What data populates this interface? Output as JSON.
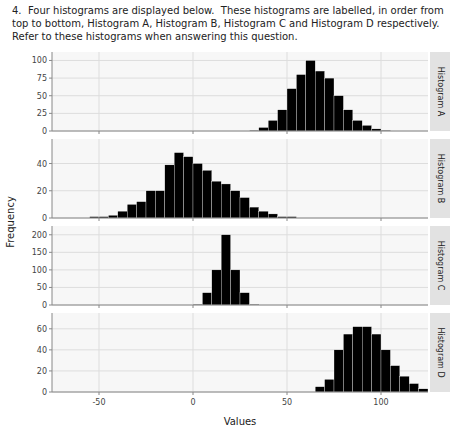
{
  "chart_data": {
    "type": "histogram",
    "title": "4.  Four histograms are displayed below.  These histograms are labelled, in order from top to bottom, Histogram A, Histogram B, Histogram C and Histogram D respectively.  Refer to these histograms when answering this question.",
    "x_label": "Values",
    "y_label": "Frequency",
    "color": "black",
    "grid": true,
    "xlim": [
      -75,
      125
    ],
    "xticks": [
      -50,
      0,
      50,
      100
    ],
    "bins": [
      -75,
      -70,
      -65,
      -60,
      -55,
      -50,
      -45,
      -40,
      -35,
      -30,
      -25,
      -20,
      -15,
      -10,
      -5,
      0,
      5,
      10,
      15,
      20,
      25,
      30,
      35,
      40,
      45,
      50,
      55,
      60,
      65,
      70,
      75,
      80,
      85,
      90,
      95,
      100,
      105,
      110,
      115,
      120,
      125
    ],
    "series": [
      {
        "name": "Histogram A",
        "ylim": [
          0,
          112
        ],
        "yticks": [
          0,
          25,
          50,
          75,
          100
        ],
        "values": [
          0,
          0,
          0,
          0,
          0,
          0,
          0,
          0,
          0,
          0,
          0,
          0,
          0,
          0,
          0,
          0,
          0,
          0,
          0,
          0,
          0,
          1,
          5,
          15,
          30,
          60,
          80,
          100,
          85,
          75,
          50,
          30,
          15,
          8,
          3,
          1,
          0,
          0,
          0,
          0
        ]
      },
      {
        "name": "Histogram B",
        "ylim": [
          0,
          58
        ],
        "yticks": [
          0,
          20,
          40
        ],
        "values": [
          0,
          0,
          0,
          0,
          1,
          1,
          2,
          5,
          10,
          12,
          20,
          20,
          39,
          48,
          45,
          40,
          35,
          27,
          25,
          20,
          15,
          8,
          5,
          3,
          1,
          1,
          0,
          0,
          0,
          0,
          0,
          0,
          0,
          0,
          0,
          0,
          0,
          0,
          0,
          0
        ]
      },
      {
        "name": "Histogram C",
        "ylim": [
          0,
          225
        ],
        "yticks": [
          0,
          50,
          100,
          150,
          200
        ],
        "values": [
          0,
          0,
          0,
          0,
          0,
          0,
          0,
          0,
          0,
          0,
          0,
          0,
          0,
          0,
          0,
          2,
          35,
          100,
          200,
          100,
          35,
          2,
          0,
          0,
          0,
          0,
          0,
          0,
          0,
          0,
          0,
          0,
          0,
          0,
          0,
          0,
          0,
          0,
          0,
          0
        ]
      },
      {
        "name": "Histogram D",
        "ylim": [
          0,
          75
        ],
        "yticks": [
          0,
          20,
          40,
          60
        ],
        "values": [
          0,
          0,
          0,
          0,
          0,
          0,
          0,
          0,
          0,
          0,
          0,
          0,
          0,
          0,
          0,
          0,
          0,
          0,
          0,
          0,
          0,
          0,
          0,
          0,
          0,
          0,
          0,
          0,
          5,
          12,
          40,
          55,
          62,
          62,
          55,
          40,
          25,
          15,
          8,
          3
        ]
      }
    ]
  }
}
